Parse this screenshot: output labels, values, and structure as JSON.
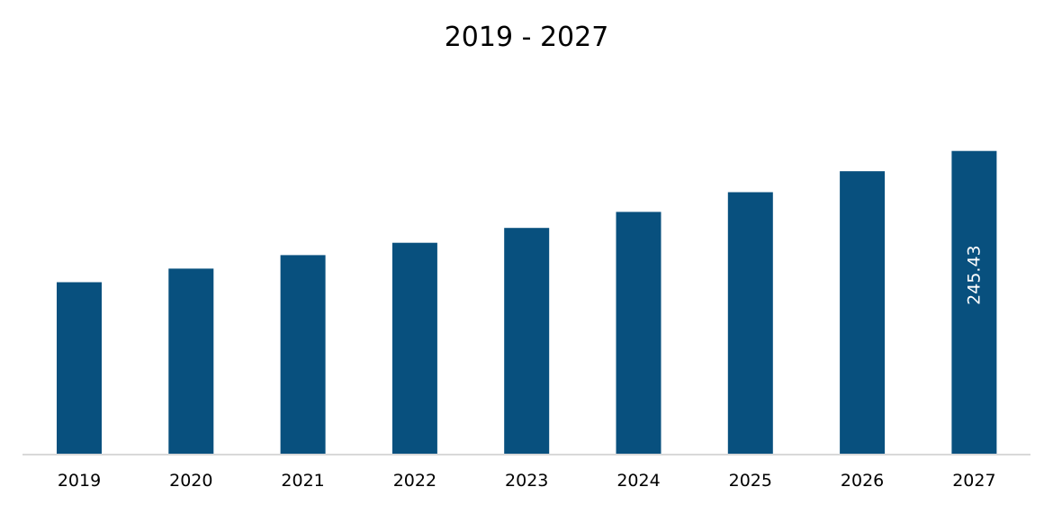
{
  "chart_data": {
    "type": "bar",
    "title": "2019 - 2027",
    "xlabel": "",
    "ylabel": "",
    "categories": [
      "2019",
      "2020",
      "2021",
      "2022",
      "2023",
      "2024",
      "2025",
      "2026",
      "2027"
    ],
    "values": [
      139,
      150,
      161,
      171,
      183,
      196,
      212,
      229,
      245.43
    ],
    "data_labels": [
      "",
      "",
      "",
      "",
      "",
      "",
      "",
      "",
      "245.43"
    ],
    "ylim": [
      0,
      270
    ],
    "grid": false,
    "legend": "none",
    "colors": {
      "bar": "#08507e",
      "axis": "#d9d9d9",
      "text": "#000000",
      "data_label": "#ffffff"
    }
  }
}
